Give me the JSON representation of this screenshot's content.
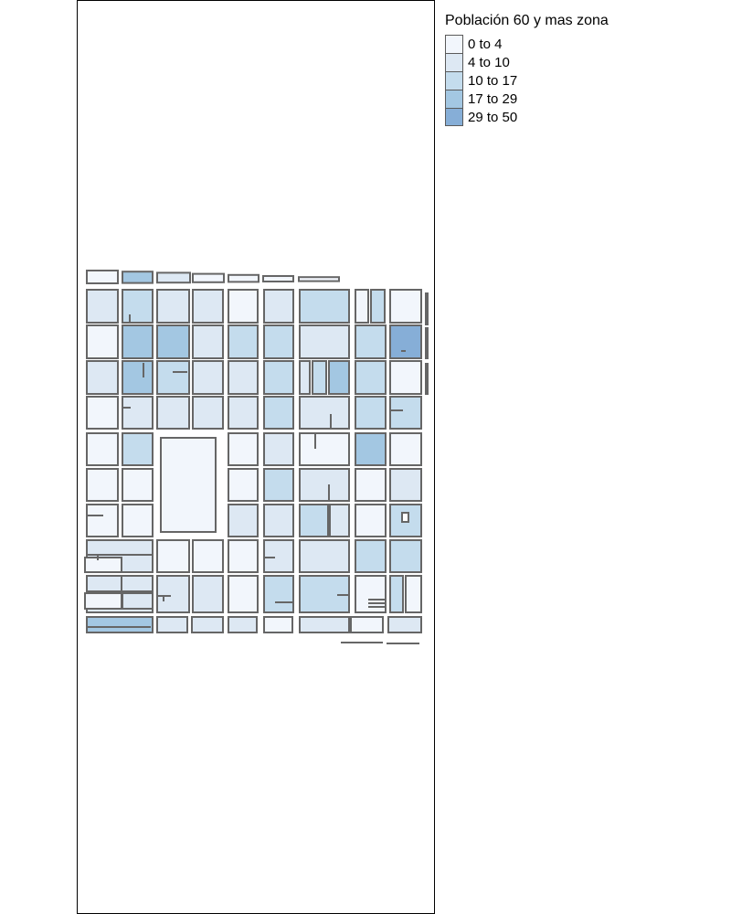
{
  "legend": {
    "title": "Población 60 y mas zona",
    "classes": [
      {
        "label": "0 to 4",
        "color": "#f2f6fc"
      },
      {
        "label": "4 to 10",
        "color": "#dde8f3"
      },
      {
        "label": "10 to 17",
        "color": "#c4dced"
      },
      {
        "label": "17 to 29",
        "color": "#a3c7e2"
      },
      {
        "label": "29 to 50",
        "color": "#86aed7"
      }
    ]
  },
  "map": {
    "border_color": "#666666",
    "block_classes": [
      [
        0,
        3,
        1,
        0,
        0,
        0,
        0
      ],
      [
        1,
        2,
        1,
        1,
        0,
        1,
        2,
        0,
        2
      ],
      [
        0,
        3,
        3,
        1,
        2,
        2,
        1,
        2,
        4
      ],
      [
        1,
        3,
        2,
        1,
        1,
        2,
        1,
        2,
        3,
        2
      ],
      [
        0,
        1,
        1,
        1,
        1,
        2,
        1,
        2,
        2
      ],
      [
        0,
        2,
        0,
        1,
        0,
        3,
        0,
        2
      ],
      [
        0,
        0,
        0,
        2,
        1,
        0,
        1,
        0
      ],
      [
        0,
        0,
        1,
        1,
        2,
        1,
        0,
        2
      ],
      [
        1,
        0,
        0,
        0,
        1,
        1,
        2,
        2
      ],
      [
        1,
        1,
        1,
        0,
        2,
        2,
        0,
        2,
        0
      ],
      [
        3,
        1,
        1,
        1,
        0,
        1,
        0,
        1
      ]
    ]
  }
}
